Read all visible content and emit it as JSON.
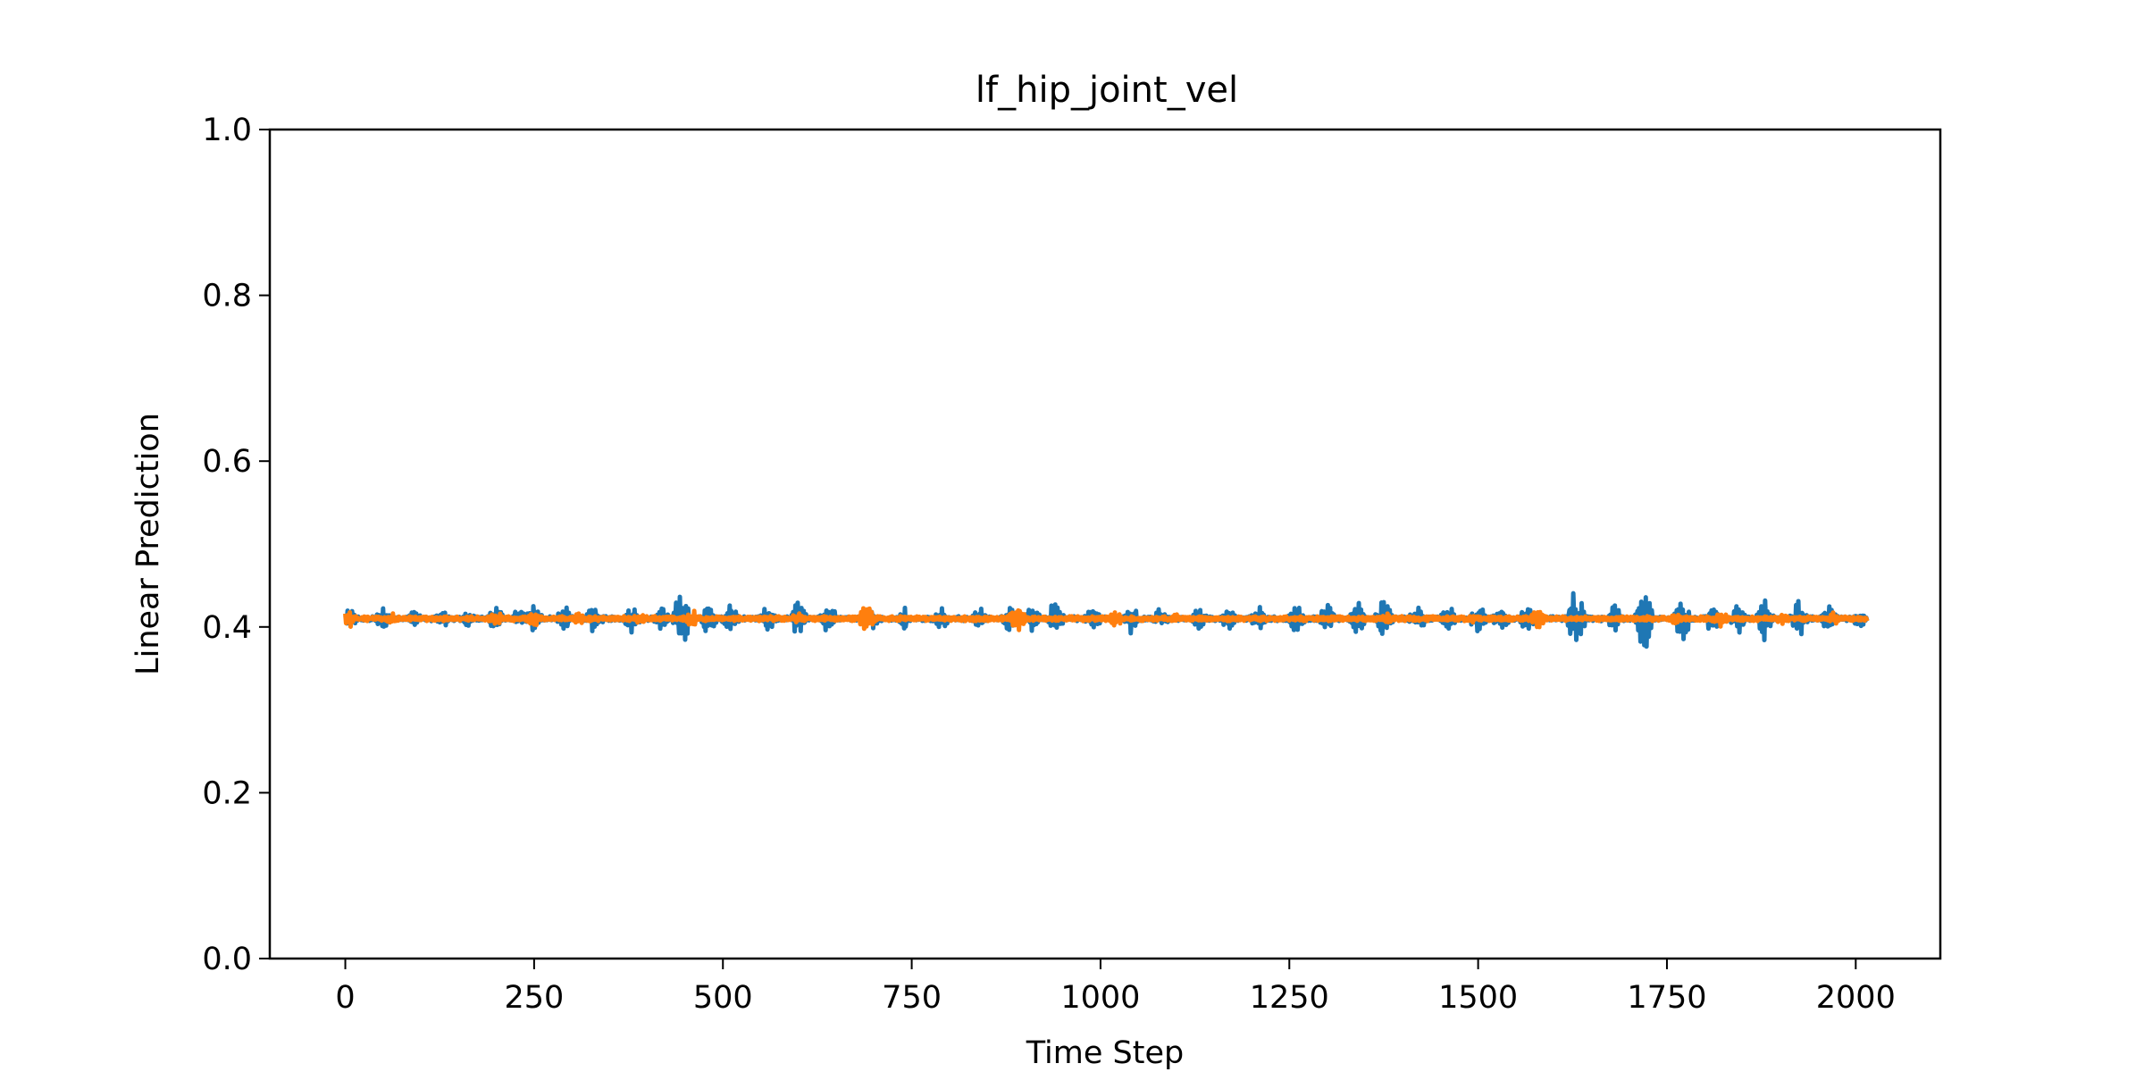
{
  "chart_data": {
    "type": "line",
    "title": "lf_hip_joint_vel",
    "xlabel": "Time Step",
    "ylabel": "Linear Prediction",
    "xlim": [
      -100,
      2112
    ],
    "ylim": [
      0.0,
      1.0
    ],
    "xticks": [
      0,
      250,
      500,
      750,
      1000,
      1250,
      1500,
      1750,
      2000
    ],
    "xtick_labels": [
      "0",
      "250",
      "500",
      "750",
      "1000",
      "1250",
      "1500",
      "1750",
      "2000"
    ],
    "yticks": [
      0.0,
      0.2,
      0.4,
      0.6,
      0.8,
      1.0
    ],
    "ytick_labels": [
      "0.0",
      "0.2",
      "0.4",
      "0.6",
      "0.8",
      "1.0"
    ],
    "grid": false,
    "legend": "none",
    "x_range": [
      0,
      2015
    ],
    "series": [
      {
        "color": "#1f77b4",
        "baseline": 0.41,
        "bursts": [
          {
            "x": 5,
            "amp": 0.015
          },
          {
            "x": 50,
            "amp": 0.017
          },
          {
            "x": 90,
            "amp": 0.012
          },
          {
            "x": 130,
            "amp": 0.012
          },
          {
            "x": 160,
            "amp": 0.013
          },
          {
            "x": 200,
            "amp": 0.02
          },
          {
            "x": 230,
            "amp": 0.015
          },
          {
            "x": 250,
            "amp": 0.02
          },
          {
            "x": 290,
            "amp": 0.02
          },
          {
            "x": 330,
            "amp": 0.022
          },
          {
            "x": 380,
            "amp": 0.02
          },
          {
            "x": 420,
            "amp": 0.018
          },
          {
            "x": 445,
            "amp": 0.045
          },
          {
            "x": 480,
            "amp": 0.025
          },
          {
            "x": 510,
            "amp": 0.02
          },
          {
            "x": 560,
            "amp": 0.02
          },
          {
            "x": 600,
            "amp": 0.025
          },
          {
            "x": 640,
            "amp": 0.022
          },
          {
            "x": 700,
            "amp": 0.015
          },
          {
            "x": 740,
            "amp": 0.015
          },
          {
            "x": 790,
            "amp": 0.015
          },
          {
            "x": 840,
            "amp": 0.015
          },
          {
            "x": 880,
            "amp": 0.02
          },
          {
            "x": 910,
            "amp": 0.02
          },
          {
            "x": 940,
            "amp": 0.025
          },
          {
            "x": 990,
            "amp": 0.02
          },
          {
            "x": 1040,
            "amp": 0.02
          },
          {
            "x": 1080,
            "amp": 0.015
          },
          {
            "x": 1130,
            "amp": 0.015
          },
          {
            "x": 1170,
            "amp": 0.015
          },
          {
            "x": 1210,
            "amp": 0.02
          },
          {
            "x": 1260,
            "amp": 0.02
          },
          {
            "x": 1300,
            "amp": 0.02
          },
          {
            "x": 1340,
            "amp": 0.022
          },
          {
            "x": 1375,
            "amp": 0.03
          },
          {
            "x": 1420,
            "amp": 0.02
          },
          {
            "x": 1460,
            "amp": 0.02
          },
          {
            "x": 1500,
            "amp": 0.02
          },
          {
            "x": 1530,
            "amp": 0.02
          },
          {
            "x": 1565,
            "amp": 0.018
          },
          {
            "x": 1630,
            "amp": 0.045
          },
          {
            "x": 1680,
            "amp": 0.02
          },
          {
            "x": 1720,
            "amp": 0.045
          },
          {
            "x": 1770,
            "amp": 0.035
          },
          {
            "x": 1810,
            "amp": 0.02
          },
          {
            "x": 1845,
            "amp": 0.022
          },
          {
            "x": 1880,
            "amp": 0.03
          },
          {
            "x": 1925,
            "amp": 0.025
          },
          {
            "x": 1965,
            "amp": 0.02
          },
          {
            "x": 2005,
            "amp": 0.012
          }
        ]
      },
      {
        "color": "#ff7f0e",
        "baseline": 0.41,
        "bursts": [
          {
            "x": 0,
            "amp": 0.02
          },
          {
            "x": 60,
            "amp": 0.008
          },
          {
            "x": 200,
            "amp": 0.01
          },
          {
            "x": 250,
            "amp": 0.01
          },
          {
            "x": 310,
            "amp": 0.008
          },
          {
            "x": 390,
            "amp": 0.008
          },
          {
            "x": 460,
            "amp": 0.012
          },
          {
            "x": 600,
            "amp": 0.008
          },
          {
            "x": 690,
            "amp": 0.018
          },
          {
            "x": 890,
            "amp": 0.02
          },
          {
            "x": 1020,
            "amp": 0.01
          },
          {
            "x": 1100,
            "amp": 0.008
          },
          {
            "x": 1380,
            "amp": 0.008
          },
          {
            "x": 1490,
            "amp": 0.008
          },
          {
            "x": 1580,
            "amp": 0.015
          },
          {
            "x": 1760,
            "amp": 0.008
          },
          {
            "x": 1820,
            "amp": 0.012
          },
          {
            "x": 1900,
            "amp": 0.008
          },
          {
            "x": 1970,
            "amp": 0.008
          }
        ]
      }
    ]
  }
}
